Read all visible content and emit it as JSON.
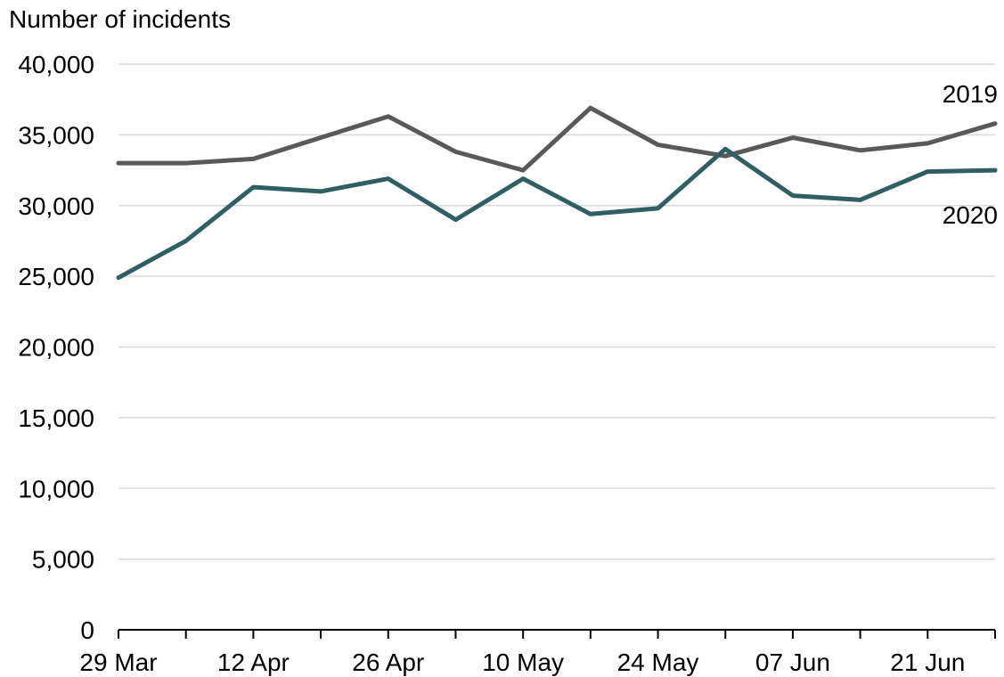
{
  "chart_data": {
    "type": "line",
    "title": "",
    "ylabel": "Number of incidents",
    "xlabel": "",
    "ylim": [
      0,
      40000
    ],
    "yticks": [
      0,
      5000,
      10000,
      15000,
      20000,
      25000,
      30000,
      35000,
      40000
    ],
    "ytick_labels": [
      "0",
      "5,000",
      "10,000",
      "15,000",
      "20,000",
      "25,000",
      "30,000",
      "35,000",
      "40,000"
    ],
    "x": [
      "29 Mar",
      "05 Apr",
      "12 Apr",
      "19 Apr",
      "26 Apr",
      "03 May",
      "10 May",
      "17 May",
      "24 May",
      "31 May",
      "07 Jun",
      "14 Jun",
      "21 Jun",
      "28 Jun"
    ],
    "xtick_labels": [
      "29 Mar",
      "",
      "12 Apr",
      "",
      "26 Apr",
      "",
      "10 May",
      "",
      "24 May",
      "",
      "07 Jun",
      "",
      "21 Jun",
      ""
    ],
    "grid": true,
    "series": [
      {
        "name": "2019",
        "color": "#595959",
        "values": [
          33000,
          33000,
          33300,
          34800,
          36300,
          33800,
          32500,
          36900,
          34300,
          33500,
          34800,
          33900,
          34400,
          35800
        ]
      },
      {
        "name": "2020",
        "color": "#2f5f62",
        "values": [
          24900,
          27500,
          31300,
          31000,
          31900,
          29000,
          31900,
          29400,
          29800,
          34000,
          30700,
          30400,
          32400,
          32500
        ]
      }
    ]
  }
}
